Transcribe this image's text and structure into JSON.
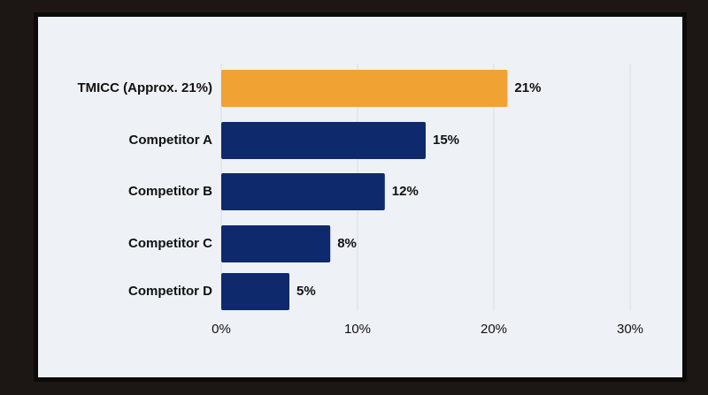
{
  "chart_data": {
    "type": "bar",
    "orientation": "horizontal",
    "categories": [
      "TMICC (Approx. 21%)",
      "Competitor A",
      "Competitor B",
      "Competitor C",
      "Competitor D"
    ],
    "values": [
      21,
      15,
      12,
      8,
      5
    ],
    "value_labels": [
      "21%",
      "15%",
      "12%",
      "8%",
      "5%"
    ],
    "colors": [
      "#f0a232",
      "#0f2a6c",
      "#0f2a6c",
      "#0f2a6c",
      "#0f2a6c"
    ],
    "xlim": [
      0,
      30
    ],
    "xticks": [
      {
        "value": 0,
        "label": "0%"
      },
      {
        "value": 10,
        "label": "10%"
      },
      {
        "value": 20,
        "label": "20%"
      },
      {
        "value": 30,
        "label": "30%"
      }
    ],
    "grid": true
  }
}
